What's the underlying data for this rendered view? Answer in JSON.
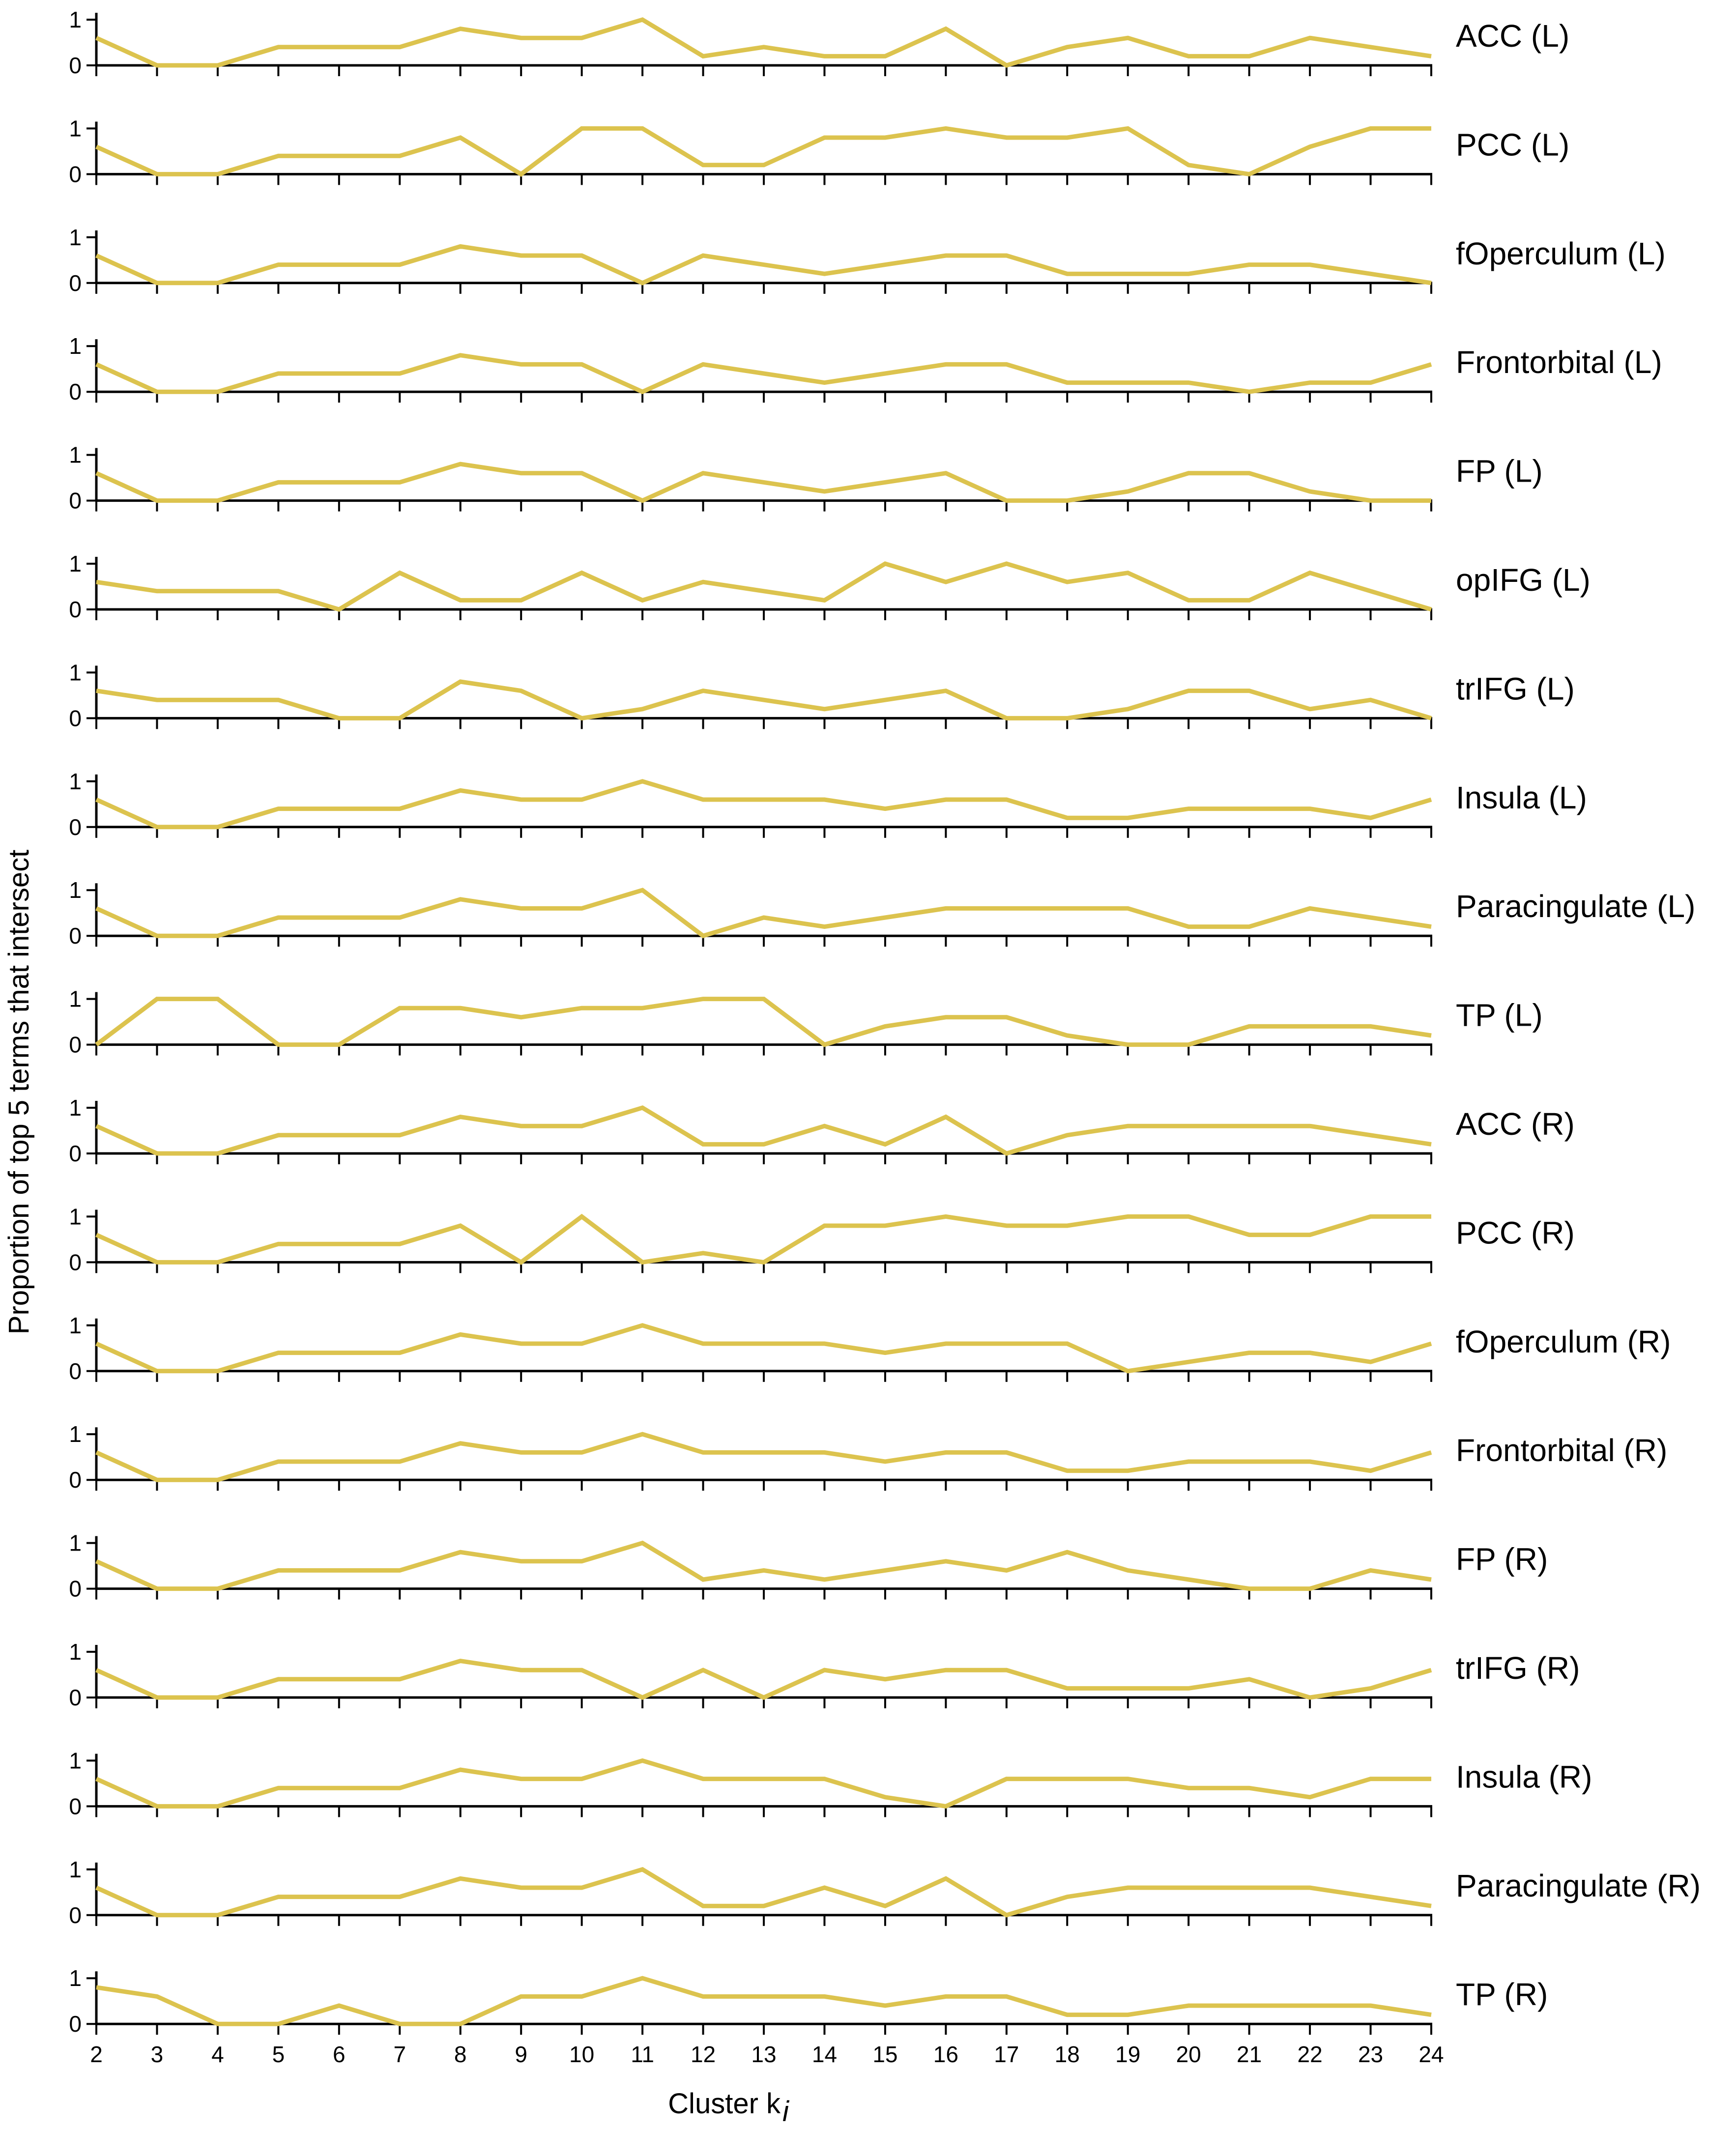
{
  "chart_data": {
    "type": "line",
    "ylabel": "Proportion of top 5 terms that intersect",
    "xlabel": "Cluster k",
    "xlabel_subscript": "i",
    "x": [
      2,
      3,
      4,
      5,
      6,
      7,
      8,
      9,
      10,
      11,
      12,
      13,
      14,
      15,
      16,
      17,
      18,
      19,
      20,
      21,
      22,
      23,
      24
    ],
    "xlim": [
      2,
      24
    ],
    "ylim": [
      0,
      1
    ],
    "yticks": [
      0,
      1
    ],
    "line_color": "#dcc34e",
    "grid": false,
    "series": [
      {
        "name": "ACC (L)",
        "values": [
          0.6,
          0,
          0,
          0.4,
          0.4,
          0.4,
          0.8,
          0.6,
          0.6,
          1.0,
          0.2,
          0.4,
          0.2,
          0.2,
          0.8,
          0,
          0.4,
          0.6,
          0.2,
          0.2,
          0.6,
          0.4,
          0.2
        ]
      },
      {
        "name": "PCC (L)",
        "values": [
          0.6,
          0,
          0,
          0.4,
          0.4,
          0.4,
          0.8,
          0,
          1.0,
          1.0,
          0.2,
          0.2,
          0.8,
          0.8,
          1.0,
          0.8,
          0.8,
          1.0,
          0.2,
          0,
          0.6,
          1.0,
          1.0
        ]
      },
      {
        "name": "fOperculum (L)",
        "values": [
          0.6,
          0,
          0,
          0.4,
          0.4,
          0.4,
          0.8,
          0.6,
          0.6,
          0,
          0.6,
          0.4,
          0.2,
          0.4,
          0.6,
          0.6,
          0.2,
          0.2,
          0.2,
          0.4,
          0.4,
          0.2,
          0
        ]
      },
      {
        "name": "Frontorbital (L)",
        "values": [
          0.6,
          0,
          0,
          0.4,
          0.4,
          0.4,
          0.8,
          0.6,
          0.6,
          0,
          0.6,
          0.4,
          0.2,
          0.4,
          0.6,
          0.6,
          0.2,
          0.2,
          0.2,
          0,
          0.2,
          0.2,
          0.6
        ]
      },
      {
        "name": "FP (L)",
        "values": [
          0.6,
          0,
          0,
          0.4,
          0.4,
          0.4,
          0.8,
          0.6,
          0.6,
          0,
          0.6,
          0.4,
          0.2,
          0.4,
          0.6,
          0,
          0,
          0.2,
          0.6,
          0.6,
          0.2,
          0,
          0
        ]
      },
      {
        "name": "opIFG (L)",
        "values": [
          0.6,
          0.4,
          0.4,
          0.4,
          0,
          0.8,
          0.2,
          0.2,
          0.8,
          0.2,
          0.6,
          0.4,
          0.2,
          1.0,
          0.6,
          1.0,
          0.6,
          0.8,
          0.2,
          0.2,
          0.8,
          0.4,
          0
        ]
      },
      {
        "name": "trIFG (L)",
        "values": [
          0.6,
          0.4,
          0.4,
          0.4,
          0,
          0,
          0.8,
          0.6,
          0,
          0.2,
          0.6,
          0.4,
          0.2,
          0.4,
          0.6,
          0,
          0,
          0.2,
          0.6,
          0.6,
          0.2,
          0.4,
          0
        ]
      },
      {
        "name": "Insula (L)",
        "values": [
          0.6,
          0,
          0,
          0.4,
          0.4,
          0.4,
          0.8,
          0.6,
          0.6,
          1.0,
          0.6,
          0.6,
          0.6,
          0.4,
          0.6,
          0.6,
          0.2,
          0.2,
          0.4,
          0.4,
          0.4,
          0.2,
          0.6
        ]
      },
      {
        "name": "Paracingulate (L)",
        "values": [
          0.6,
          0,
          0,
          0.4,
          0.4,
          0.4,
          0.8,
          0.6,
          0.6,
          1.0,
          0,
          0.4,
          0.2,
          0.4,
          0.6,
          0.6,
          0.6,
          0.6,
          0.2,
          0.2,
          0.6,
          0.4,
          0.2
        ]
      },
      {
        "name": "TP (L)",
        "values": [
          0,
          1.0,
          1.0,
          0,
          0,
          0.8,
          0.8,
          0.6,
          0.8,
          0.8,
          1.0,
          1.0,
          0,
          0.4,
          0.6,
          0.6,
          0.2,
          0,
          0,
          0.4,
          0.4,
          0.4,
          0.2
        ]
      },
      {
        "name": "ACC (R)",
        "values": [
          0.6,
          0,
          0,
          0.4,
          0.4,
          0.4,
          0.8,
          0.6,
          0.6,
          1.0,
          0.2,
          0.2,
          0.6,
          0.2,
          0.8,
          0,
          0.4,
          0.6,
          0.6,
          0.6,
          0.6,
          0.4,
          0.2
        ]
      },
      {
        "name": "PCC (R)",
        "values": [
          0.6,
          0,
          0,
          0.4,
          0.4,
          0.4,
          0.8,
          0,
          1.0,
          0,
          0.2,
          0,
          0.8,
          0.8,
          1.0,
          0.8,
          0.8,
          1.0,
          1.0,
          0.6,
          0.6,
          1.0,
          1.0
        ]
      },
      {
        "name": "fOperculum (R)",
        "values": [
          0.6,
          0,
          0,
          0.4,
          0.4,
          0.4,
          0.8,
          0.6,
          0.6,
          1.0,
          0.6,
          0.6,
          0.6,
          0.4,
          0.6,
          0.6,
          0.6,
          0,
          0.2,
          0.4,
          0.4,
          0.2,
          0.6
        ]
      },
      {
        "name": "Frontorbital (R)",
        "values": [
          0.6,
          0,
          0,
          0.4,
          0.4,
          0.4,
          0.8,
          0.6,
          0.6,
          1.0,
          0.6,
          0.6,
          0.6,
          0.4,
          0.6,
          0.6,
          0.2,
          0.2,
          0.4,
          0.4,
          0.4,
          0.2,
          0.6
        ]
      },
      {
        "name": "FP (R)",
        "values": [
          0.6,
          0,
          0,
          0.4,
          0.4,
          0.4,
          0.8,
          0.6,
          0.6,
          1.0,
          0.2,
          0.4,
          0.2,
          0.4,
          0.6,
          0.4,
          0.8,
          0.4,
          0.2,
          0,
          0,
          0.4,
          0.2
        ]
      },
      {
        "name": "trIFG (R)",
        "values": [
          0.6,
          0,
          0,
          0.4,
          0.4,
          0.4,
          0.8,
          0.6,
          0.6,
          0,
          0.6,
          0,
          0.6,
          0.4,
          0.6,
          0.6,
          0.2,
          0.2,
          0.2,
          0.4,
          0,
          0.2,
          0.6
        ]
      },
      {
        "name": "Insula (R)",
        "values": [
          0.6,
          0,
          0,
          0.4,
          0.4,
          0.4,
          0.8,
          0.6,
          0.6,
          1.0,
          0.6,
          0.6,
          0.6,
          0.2,
          0,
          0.6,
          0.6,
          0.6,
          0.4,
          0.4,
          0.2,
          0.6,
          0.6
        ]
      },
      {
        "name": "Paracingulate (R)",
        "values": [
          0.6,
          0,
          0,
          0.4,
          0.4,
          0.4,
          0.8,
          0.6,
          0.6,
          1.0,
          0.2,
          0.2,
          0.6,
          0.2,
          0.8,
          0,
          0.4,
          0.6,
          0.6,
          0.6,
          0.6,
          0.4,
          0.2
        ]
      },
      {
        "name": "TP (R)",
        "values": [
          0.8,
          0.6,
          0,
          0,
          0.4,
          0,
          0,
          0.6,
          0.6,
          1.0,
          0.6,
          0.6,
          0.6,
          0.4,
          0.6,
          0.6,
          0.2,
          0.2,
          0.4,
          0.4,
          0.4,
          0.4,
          0.2
        ]
      }
    ]
  }
}
